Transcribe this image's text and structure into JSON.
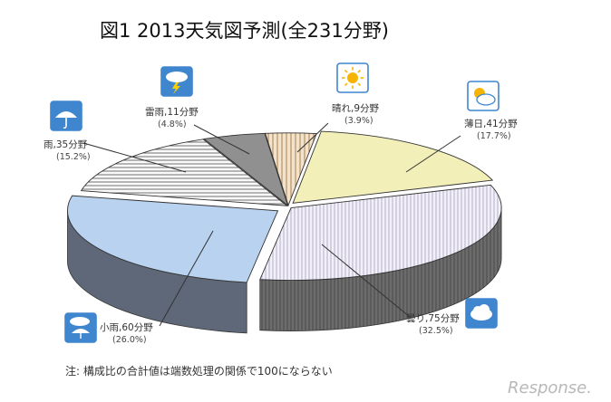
{
  "chart_data": {
    "type": "pie",
    "title": "図1 2013天気図予測(全231分野)",
    "slices": [
      {
        "key": "hare",
        "label": "晴れ,9分野",
        "value": 9,
        "percent_label": "(3.9%)",
        "color": "#f2dcc0",
        "pattern": "vstripe-tan",
        "icon": "sun-icon"
      },
      {
        "key": "usubi",
        "label": "薄日,41分野",
        "value": 41,
        "percent_label": "(17.7%)",
        "color": "#f2f0b8",
        "pattern": "none",
        "icon": "sun-behind-cloud-icon"
      },
      {
        "key": "kumori",
        "label": "曇り,75分野",
        "value": 75,
        "percent_label": "(32.5%)",
        "color": "#e6e2f0",
        "pattern": "vstripe-lav",
        "icon": "cloud-icon"
      },
      {
        "key": "kosame",
        "label": "小雨,60分野",
        "value": 60,
        "percent_label": "(26.0%)",
        "color": "#b8d2f0",
        "pattern": "none",
        "icon": "cloud-rain-umbrella-icon"
      },
      {
        "key": "ame",
        "label": "雨,35分野",
        "value": 35,
        "percent_label": "(15.2%)",
        "color": "#f4f4f4",
        "pattern": "hstripe-gray",
        "icon": "umbrella-icon"
      },
      {
        "key": "raiu",
        "label": "雷雨,11分野",
        "value": 11,
        "percent_label": "(4.8%)",
        "color": "#909090",
        "pattern": "none",
        "icon": "thunder-cloud-icon"
      }
    ],
    "note": "注: 構成比の合計値は端数処理の関係で100にならない"
  },
  "watermark": "Response."
}
